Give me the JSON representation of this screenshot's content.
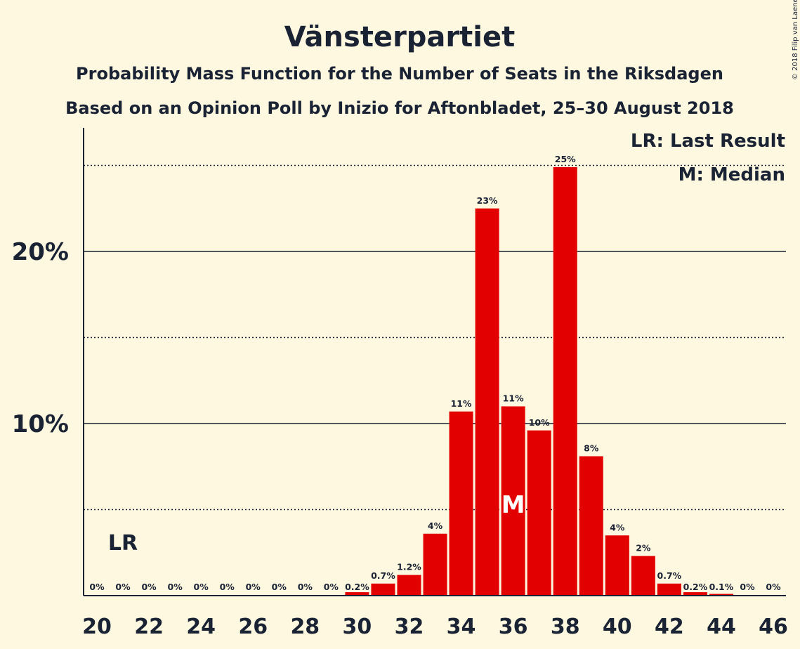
{
  "colors": {
    "background": "#FFF8E1",
    "bar": "#E30000",
    "text": "#1a2333",
    "median_text": "#ffffff"
  },
  "copyright": "© 2018 Filip van Laenen",
  "chart_data": {
    "type": "bar",
    "title": "Vänsterpartiet",
    "subtitle1": "Probability Mass Function for the Number of Seats in the Riksdagen",
    "subtitle2": "Based on an Opinion Poll by Inizio for Aftonbladet, 25–30 August 2018",
    "xlabel": "",
    "ylabel": "",
    "categories": [
      20,
      21,
      22,
      23,
      24,
      25,
      26,
      27,
      28,
      29,
      30,
      31,
      32,
      33,
      34,
      35,
      36,
      37,
      38,
      39,
      40,
      41,
      42,
      43,
      44,
      45,
      46
    ],
    "values": [
      0,
      0,
      0,
      0,
      0,
      0,
      0,
      0,
      0,
      0,
      0.2,
      0.7,
      1.2,
      3.6,
      10.7,
      22.5,
      11.0,
      9.6,
      24.9,
      8.1,
      3.5,
      2.3,
      0.7,
      0.2,
      0.1,
      0,
      0
    ],
    "data_labels": [
      "0%",
      "0%",
      "0%",
      "0%",
      "0%",
      "0%",
      "0%",
      "0%",
      "0%",
      "0%",
      "0.2%",
      "0.7%",
      "1.2%",
      "4%",
      "11%",
      "23%",
      "11%",
      "10%",
      "25%",
      "8%",
      "4%",
      "2%",
      "0.7%",
      "0.2%",
      "0.1%",
      "0%",
      "0%"
    ],
    "xticks": [
      20,
      22,
      24,
      26,
      28,
      30,
      32,
      34,
      36,
      38,
      40,
      42,
      44,
      46
    ],
    "yticks": [
      {
        "value": 10,
        "label": "10%"
      },
      {
        "value": 20,
        "label": "20%"
      }
    ],
    "dotted_gridlines": [
      5,
      15,
      25
    ],
    "ylim": [
      0,
      27.2
    ],
    "last_result": {
      "seats": 21,
      "label": "LR"
    },
    "median": {
      "seats": 36,
      "label": "M"
    },
    "legend": [
      "LR: Last Result",
      "M: Median"
    ]
  }
}
